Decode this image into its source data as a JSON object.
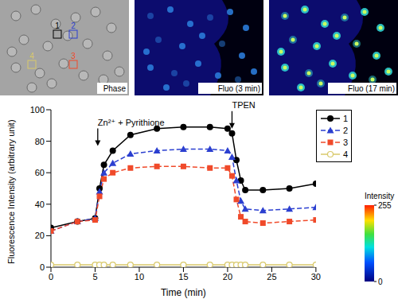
{
  "chart_data": {
    "type": "line",
    "x_label": "Time (min)",
    "y_label": "Fluorescence Intensity (arbitrary unit)",
    "x": [
      0,
      3,
      5,
      5.5,
      6,
      7,
      9,
      12,
      15,
      18,
      20,
      20.5,
      21,
      21.5,
      22,
      24,
      27,
      30
    ],
    "xlim": [
      0,
      30
    ],
    "xticks": [
      0,
      5,
      10,
      15,
      20,
      25,
      30
    ],
    "ylim": [
      0,
      100
    ],
    "yticks": [
      0,
      20,
      40,
      60,
      80,
      100
    ],
    "grid": false,
    "legend": "right",
    "series": [
      {
        "name": "1",
        "color": "#000000",
        "marker": "circle",
        "line_style": "solid",
        "values": [
          25,
          29,
          31,
          50,
          65,
          74,
          84,
          88,
          89,
          89,
          88,
          85,
          68,
          55,
          49,
          49,
          50,
          53
        ]
      },
      {
        "name": "2",
        "color": "#2b3fd0",
        "marker": "triangle",
        "line_style": "dashed",
        "values": [
          23,
          29,
          31,
          48,
          60,
          66,
          72,
          74,
          75,
          75,
          74,
          70,
          55,
          42,
          37,
          36,
          37,
          38
        ]
      },
      {
        "name": "3",
        "color": "#f04a2a",
        "marker": "square",
        "line_style": "dashed",
        "values": [
          23,
          29,
          30,
          45,
          56,
          60,
          63,
          64,
          64,
          63,
          63,
          58,
          43,
          32,
          29,
          28,
          29,
          30
        ]
      },
      {
        "name": "4",
        "color": "#d9c96a",
        "marker": "open_circle",
        "line_style": "solid",
        "values": [
          1.5,
          1.5,
          1.5,
          1.5,
          1.5,
          1.5,
          1.5,
          1.5,
          1.5,
          1.5,
          1.5,
          1.5,
          1.5,
          1.5,
          1.5,
          1.5,
          1.5,
          1.5
        ]
      }
    ],
    "annotations": [
      {
        "text": "Zn²⁺ + Pyrithione",
        "x": 5.3,
        "y": 77
      },
      {
        "text": "TPEN",
        "x": 20.5,
        "y": 88
      }
    ],
    "colorbar": {
      "title": "Intensity",
      "range": [
        0,
        255
      ],
      "ticks": [
        0,
        255
      ]
    }
  },
  "panels": [
    {
      "label": "Phase",
      "cells": [
        "1",
        "2",
        "3",
        "4"
      ]
    },
    {
      "label": "Fluo (3 min)"
    },
    {
      "label": "Fluo (17 min)"
    }
  ]
}
